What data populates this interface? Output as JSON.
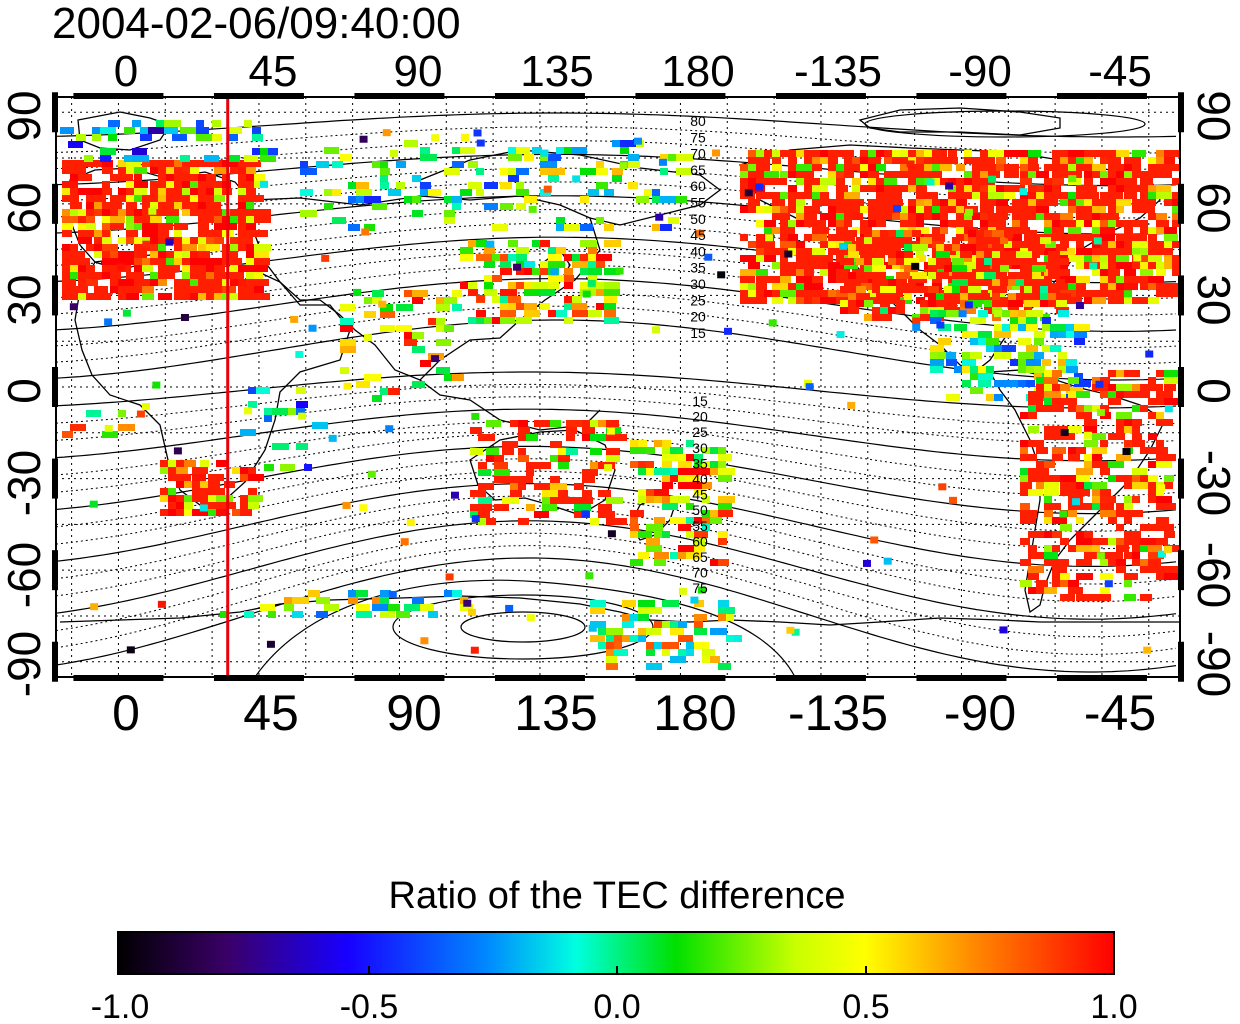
{
  "title": "2004-02-06/09:40:00",
  "map": {
    "lon_ticks": [
      "0",
      "45",
      "90",
      "135",
      "180",
      "-135",
      "-90",
      "-45"
    ],
    "lat_ticks": [
      "90",
      "60",
      "30",
      "0",
      "-30",
      "-60",
      "-90"
    ],
    "lon_range": [
      -20,
      340
    ],
    "lat_range": [
      -95,
      95
    ],
    "tick_spacing_deg": 15,
    "grid": "dotted",
    "marker_line_lon": 35,
    "marker_line_color": "#e8000b",
    "north_contour_labels": [
      "80",
      "75",
      "70",
      "65",
      "60",
      "55",
      "50",
      "45",
      "40",
      "35",
      "30",
      "25",
      "20",
      "15"
    ],
    "south_contour_labels": [
      "15",
      "20",
      "25",
      "30",
      "35",
      "40",
      "45",
      "50",
      "55",
      "60",
      "65",
      "70",
      "75"
    ]
  },
  "colorbar": {
    "title": "Ratio of the TEC difference",
    "tick_labels": [
      "-1.0",
      "-0.5",
      "0.0",
      "0.5",
      "1.0"
    ],
    "range": [
      -1.0,
      1.0
    ],
    "stops": [
      "#000000",
      "#3a0068",
      "#1800ff",
      "#0088ff",
      "#00ffe0",
      "#00e000",
      "#c8ff00",
      "#ffff00",
      "#ff8800",
      "#ff0000"
    ]
  }
}
